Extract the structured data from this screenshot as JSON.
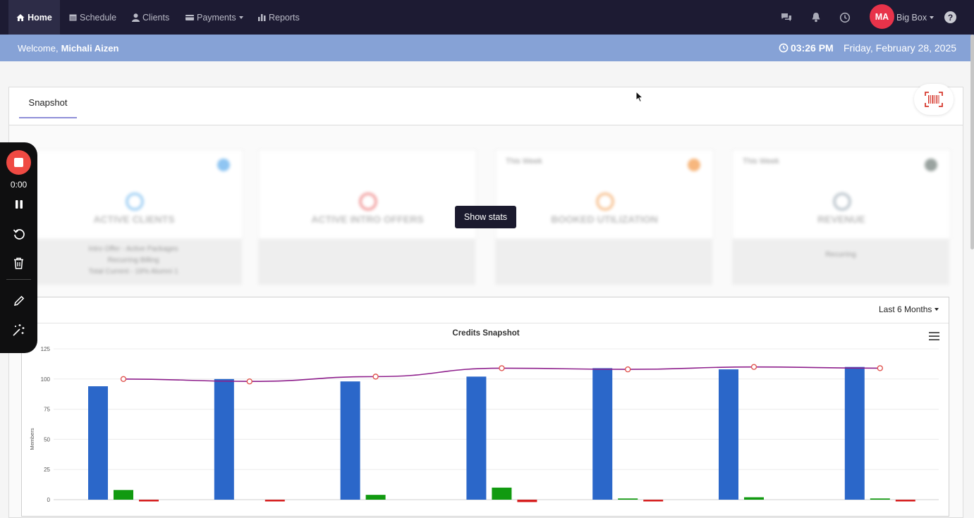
{
  "nav": {
    "items": [
      {
        "label": "Home",
        "icon": "home-icon",
        "active": true
      },
      {
        "label": "Schedule",
        "icon": "calendar-icon"
      },
      {
        "label": "Clients",
        "icon": "user-icon"
      },
      {
        "label": "Payments",
        "icon": "credit-card-icon",
        "dropdown": true
      },
      {
        "label": "Reports",
        "icon": "bar-chart-icon"
      }
    ],
    "avatar_initials": "MA",
    "account_label": "Big Box",
    "help_label": "?"
  },
  "welcome": {
    "greeting": "Welcome,",
    "user_name": "Michali Aizen",
    "time": "03:26 PM",
    "date": "Friday, February 28, 2025"
  },
  "tabs": [
    {
      "label": "Snapshot"
    }
  ],
  "cards": [
    {
      "title": "ACTIVE CLIENTS",
      "week": "",
      "dot_color": "#8fc5f2",
      "ring_color": "#a7d3f5",
      "sub": [
        "Intro Offer - Active Packages",
        "Recurring Billing",
        "Total Current - 19% Alumni 1"
      ]
    },
    {
      "title": "ACTIVE INTRO OFFERS",
      "week": "",
      "dot_color": "",
      "ring_color": "#f3a6a6",
      "sub": []
    },
    {
      "title": "BOOKED UTILIZATION",
      "week": "This Week",
      "dot_color": "#f7b77e",
      "ring_color": "#f8c79b",
      "sub": []
    },
    {
      "title": "REVENUE",
      "week": "This Week",
      "dot_color": "#9aa3a0",
      "ring_color": "#c0c9d0",
      "sub": [
        "Recurring"
      ]
    }
  ],
  "show_stats_label": "Show stats",
  "range_label": "Last 6 Months",
  "recorder": {
    "time": "0:00"
  },
  "chart_data": {
    "type": "bar",
    "title": "Credits Snapshot",
    "xlabel": "",
    "ylabel": "Members",
    "ylim": [
      0,
      125
    ],
    "yticks": [
      0,
      25,
      50,
      75,
      100,
      125
    ],
    "grid": true,
    "groups": 7,
    "series": [
      {
        "type": "bar",
        "color": "#2b67c9",
        "values": [
          94,
          100,
          98,
          102,
          109,
          108,
          110
        ]
      },
      {
        "type": "bar",
        "color": "#119a10",
        "values": [
          8,
          0,
          4,
          10,
          1,
          2,
          1
        ]
      },
      {
        "type": "bar",
        "color": "#d61f1f",
        "values": [
          -1,
          -1,
          0,
          -2,
          -1,
          0,
          -1
        ]
      },
      {
        "type": "line",
        "color": "#8e1f8c",
        "marker_color": "#e0544f",
        "values": [
          100,
          98,
          102,
          109,
          108,
          110,
          109
        ]
      }
    ]
  }
}
